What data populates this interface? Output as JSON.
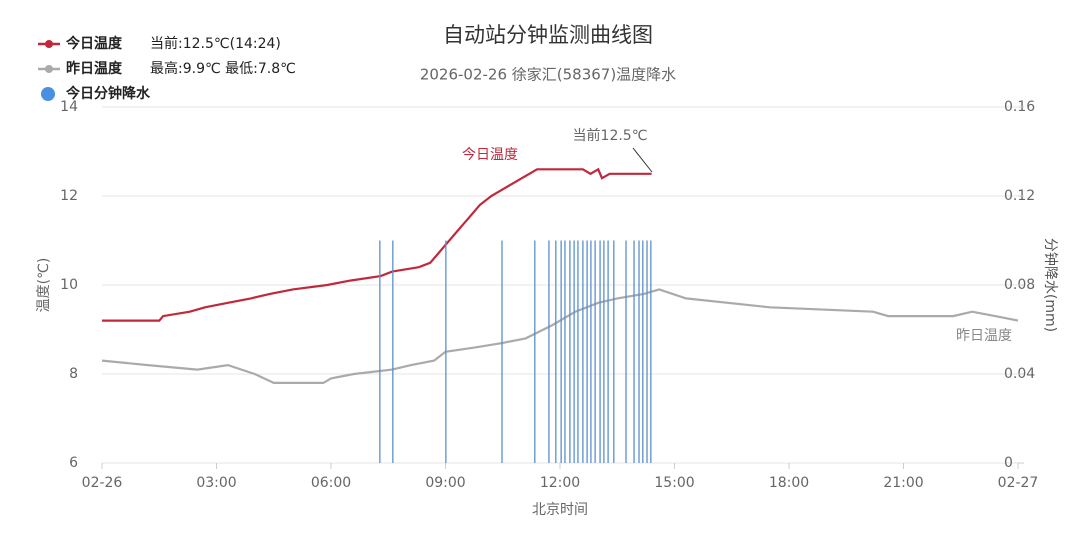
{
  "chart_data": {
    "type": "line",
    "title": "自动站分钟监测曲线图",
    "subtitle": "2026-02-26 徐家汇(58367)温度降水",
    "x_label": "北京时间",
    "y_label": "温度(℃)",
    "y2_label": "分钟降水(mm)",
    "xlim": [
      0,
      24
    ],
    "xticks": [
      {
        "value": 0,
        "label": "02-26"
      },
      {
        "value": 3,
        "label": "03:00"
      },
      {
        "value": 6,
        "label": "06:00"
      },
      {
        "value": 9,
        "label": "09:00"
      },
      {
        "value": 12,
        "label": "12:00"
      },
      {
        "value": 15,
        "label": "15:00"
      },
      {
        "value": 18,
        "label": "18:00"
      },
      {
        "value": 21,
        "label": "21:00"
      },
      {
        "value": 24,
        "label": "02-27"
      }
    ],
    "ylim": [
      6,
      14
    ],
    "yticks": [
      6,
      8,
      10,
      12,
      14
    ],
    "y2lim": [
      0,
      0.16
    ],
    "y2ticks": [
      0,
      0.04,
      0.08,
      0.12,
      0.16
    ],
    "grid": true,
    "annotations": [
      "当前12.5℃"
    ],
    "series": [
      {
        "name": "今日温度",
        "color": "#c0283c",
        "legend_note": "当前:12.5℃(14:24)",
        "x": [
          0,
          1.5,
          1.6,
          2.3,
          2.7,
          3.3,
          3.9,
          4.4,
          5.0,
          5.9,
          6.5,
          7.3,
          7.6,
          8.3,
          8.6,
          8.8,
          9.0,
          9.3,
          9.6,
          9.9,
          10.2,
          10.6,
          11.0,
          11.4,
          12.6,
          12.8,
          13.0,
          13.1,
          13.3,
          14.4
        ],
        "values": [
          9.2,
          9.2,
          9.3,
          9.4,
          9.5,
          9.6,
          9.7,
          9.8,
          9.9,
          10.0,
          10.1,
          10.2,
          10.3,
          10.4,
          10.5,
          10.7,
          10.9,
          11.2,
          11.5,
          11.8,
          12.0,
          12.2,
          12.4,
          12.6,
          12.6,
          12.5,
          12.6,
          12.4,
          12.5,
          12.5
        ]
      },
      {
        "name": "昨日温度",
        "color": "#aaaaaa",
        "legend_note": "最高:9.9℃ 最低:7.8℃",
        "x": [
          0,
          1.2,
          2.5,
          3.3,
          4.0,
          4.5,
          5.8,
          6.0,
          6.6,
          7.6,
          8.1,
          8.7,
          9.0,
          9.8,
          10.5,
          11.1,
          11.8,
          12.4,
          13.0,
          13.5,
          14.2,
          14.6,
          15.3,
          17.5,
          20.2,
          20.6,
          22.3,
          22.8,
          23.4,
          24
        ],
        "values": [
          8.3,
          8.2,
          8.1,
          8.2,
          8.0,
          7.8,
          7.8,
          7.9,
          8.0,
          8.1,
          8.2,
          8.3,
          8.5,
          8.6,
          8.7,
          8.8,
          9.1,
          9.4,
          9.6,
          9.7,
          9.8,
          9.9,
          9.7,
          9.5,
          9.4,
          9.3,
          9.3,
          9.4,
          9.3,
          9.2
        ]
      },
      {
        "name": "今日分钟降水",
        "type": "bar",
        "axis": "y2",
        "color": "#5b8fd0",
        "x": [
          7.28,
          7.62,
          9.01,
          10.48,
          11.34,
          11.71,
          11.89,
          12.03,
          12.13,
          12.26,
          12.37,
          12.47,
          12.6,
          12.71,
          12.81,
          12.92,
          13.05,
          13.15,
          13.26,
          13.41,
          13.73,
          13.94,
          14.07,
          14.17,
          14.28,
          14.38
        ],
        "values": [
          0.1,
          0.1,
          0.1,
          0.1,
          0.1,
          0.1,
          0.1,
          0.1,
          0.1,
          0.1,
          0.1,
          0.1,
          0.1,
          0.1,
          0.1,
          0.1,
          0.1,
          0.1,
          0.1,
          0.1,
          0.1,
          0.1,
          0.1,
          0.1,
          0.1,
          0.1
        ]
      }
    ]
  }
}
